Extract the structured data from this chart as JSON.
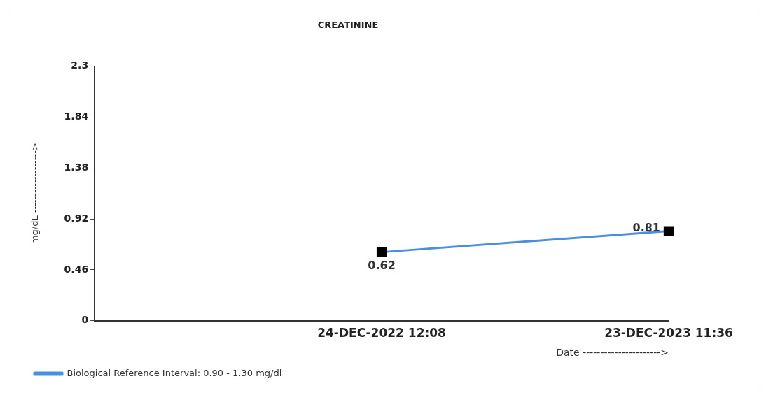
{
  "chart_data": {
    "type": "line",
    "title": "CREATININE",
    "xlabel": "Date ---------------------->",
    "ylabel": "mg/dL ------------------->",
    "categories": [
      null,
      "24-DEC-2022 12:08",
      "23-DEC-2023 11:36"
    ],
    "series": [
      {
        "name": "Biological Reference Interval: 0.90 - 1.30 mg/dl",
        "color": "#4a90e2",
        "values": [
          null,
          0.62,
          0.81
        ]
      }
    ],
    "ylim": [
      0,
      2.3
    ],
    "yticks": [
      0,
      0.46,
      0.92,
      1.38,
      1.84,
      2.3
    ],
    "grid": false,
    "legend": "bottom left",
    "marker": "square",
    "line_style": "solid",
    "data_labels": true
  }
}
